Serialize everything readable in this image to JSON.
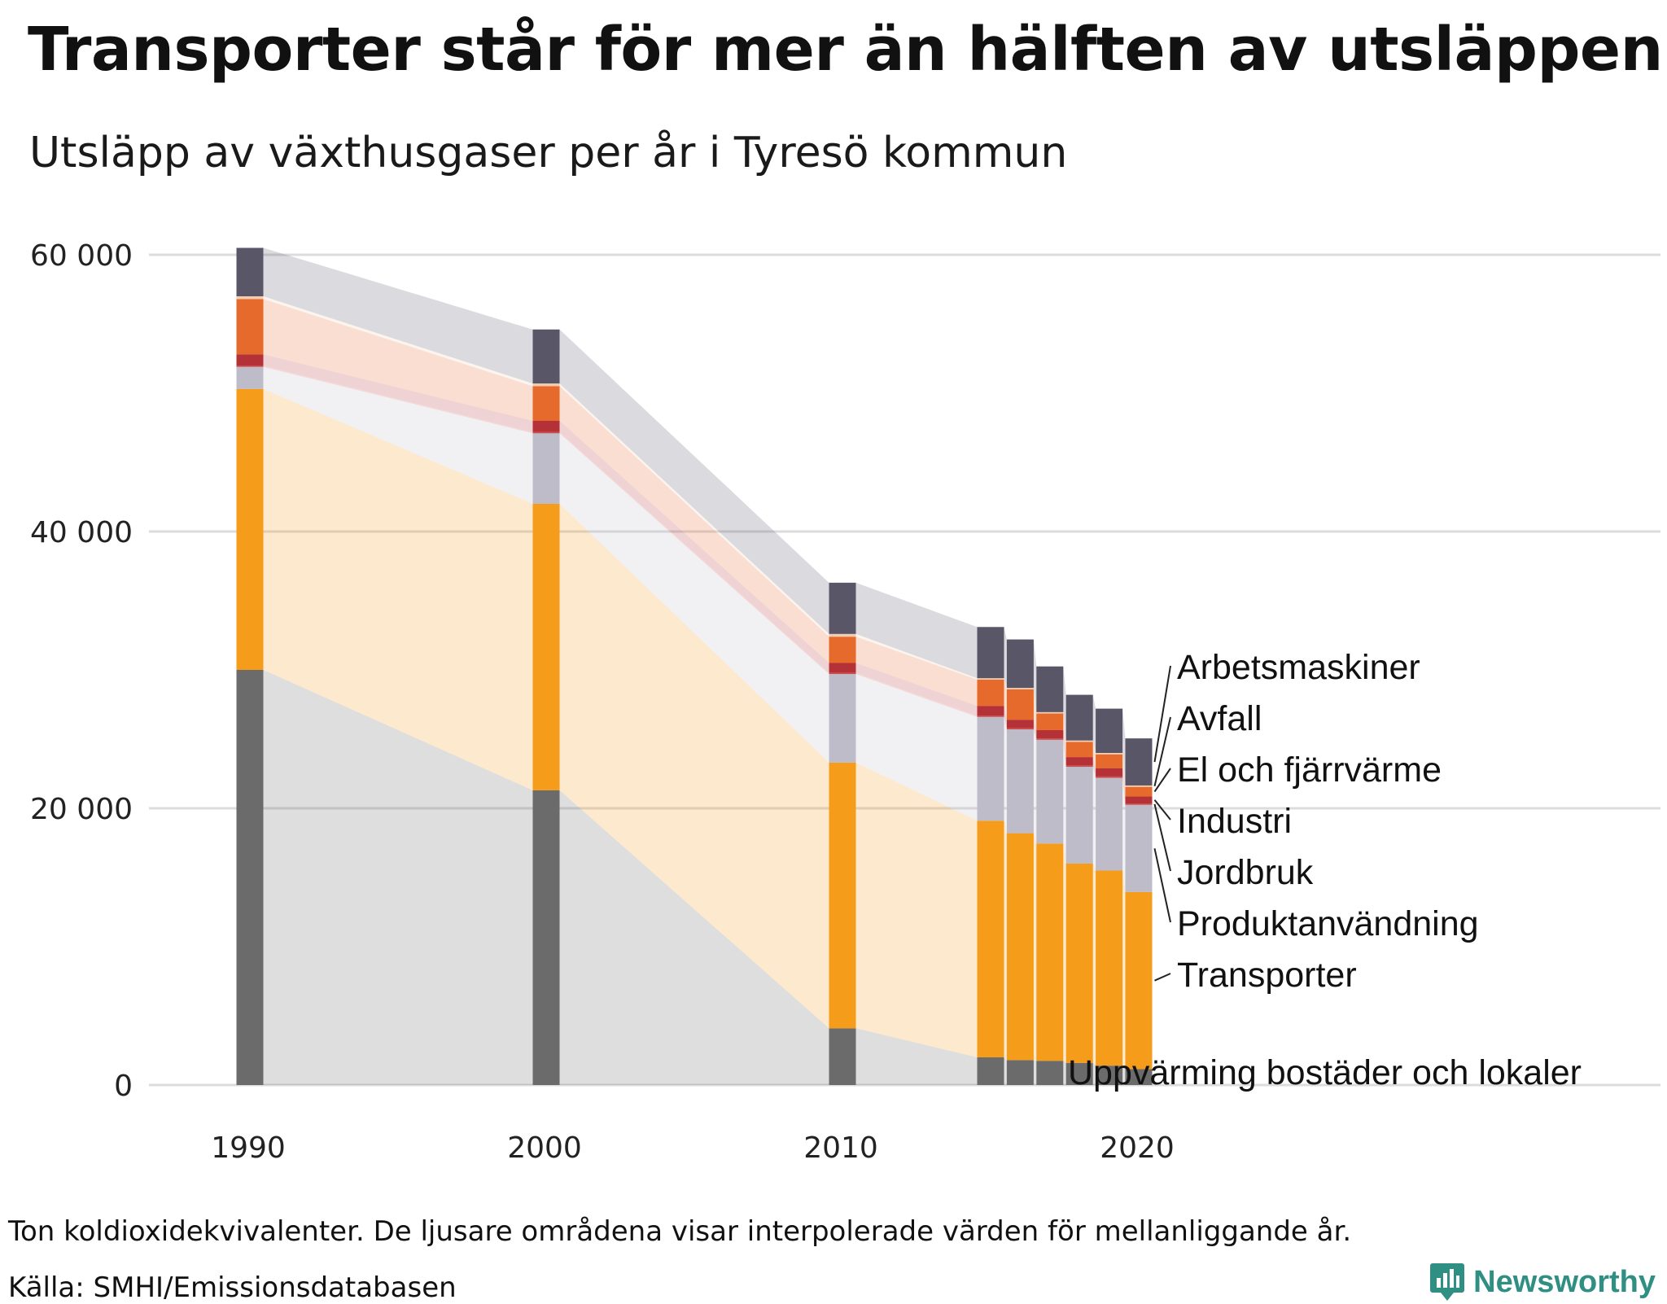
{
  "header": {
    "title": "Transporter står för mer än hälften av utsläppen",
    "subtitle": "Utsläpp av växthusgaser per år i Tyresö kommun"
  },
  "footer": {
    "note": "Ton koldioxidekvivalenter. De ljusare områdena visar interpolerade värden för mellanliggande år.",
    "source": "Källa: SMHI/Emissionsdatabasen",
    "brand": "Newsworthy",
    "brand_color": "#2f8f82"
  },
  "chart_data": {
    "type": "bar",
    "stacked": true,
    "title": "Transporter står för mer än hälften av utsläppen",
    "subtitle": "Utsläpp av växthusgaser per år i Tyresö kommun",
    "x": [
      1990,
      2000,
      2010,
      2015,
      2016,
      2017,
      2018,
      2019,
      2020
    ],
    "x_ticks": [
      1990,
      2000,
      2010,
      2020
    ],
    "x_tick_labels": [
      "1990",
      "2000",
      "2010",
      "2020"
    ],
    "ylim": [
      0,
      60000
    ],
    "y_ticks": [
      0,
      20000,
      40000,
      60000
    ],
    "y_tick_labels": [
      "0",
      "20 000",
      "40 000",
      "60 000"
    ],
    "grid": true,
    "interpolated_areas": true,
    "series": [
      {
        "name": "Uppvärming bostäder och lokaler",
        "color": "#6b6b6b",
        "values": [
          30000,
          21300,
          4100,
          2000,
          1800,
          1750,
          1600,
          1400,
          1150
        ]
      },
      {
        "name": "Transporter",
        "color": "#f59c1a",
        "values": [
          20300,
          20700,
          19200,
          17100,
          16400,
          15700,
          14400,
          14100,
          12800
        ]
      },
      {
        "name": "Produktanvändning",
        "color": "#bebcc8",
        "values": [
          1600,
          5100,
          6400,
          7500,
          7500,
          7500,
          7000,
          6700,
          6300
        ]
      },
      {
        "name": "Jordbruk",
        "color": "#cc4a4a",
        "values": [
          100,
          100,
          100,
          100,
          100,
          100,
          100,
          100,
          100
        ]
      },
      {
        "name": "Industri",
        "color": "#b43237",
        "values": [
          800,
          800,
          700,
          700,
          600,
          600,
          600,
          600,
          500
        ]
      },
      {
        "name": "El och fjärrvärme",
        "color": "#e56a2c",
        "values": [
          4000,
          2500,
          1900,
          1900,
          2200,
          1200,
          1100,
          1000,
          700
        ]
      },
      {
        "name": "Avfall",
        "color": "#f2cdb0",
        "values": [
          200,
          200,
          200,
          100,
          100,
          100,
          100,
          100,
          100
        ]
      },
      {
        "name": "Arbetsmaskiner",
        "color": "#595767",
        "values": [
          3500,
          3900,
          3700,
          3700,
          3500,
          3300,
          3300,
          3200,
          3400
        ]
      }
    ]
  }
}
